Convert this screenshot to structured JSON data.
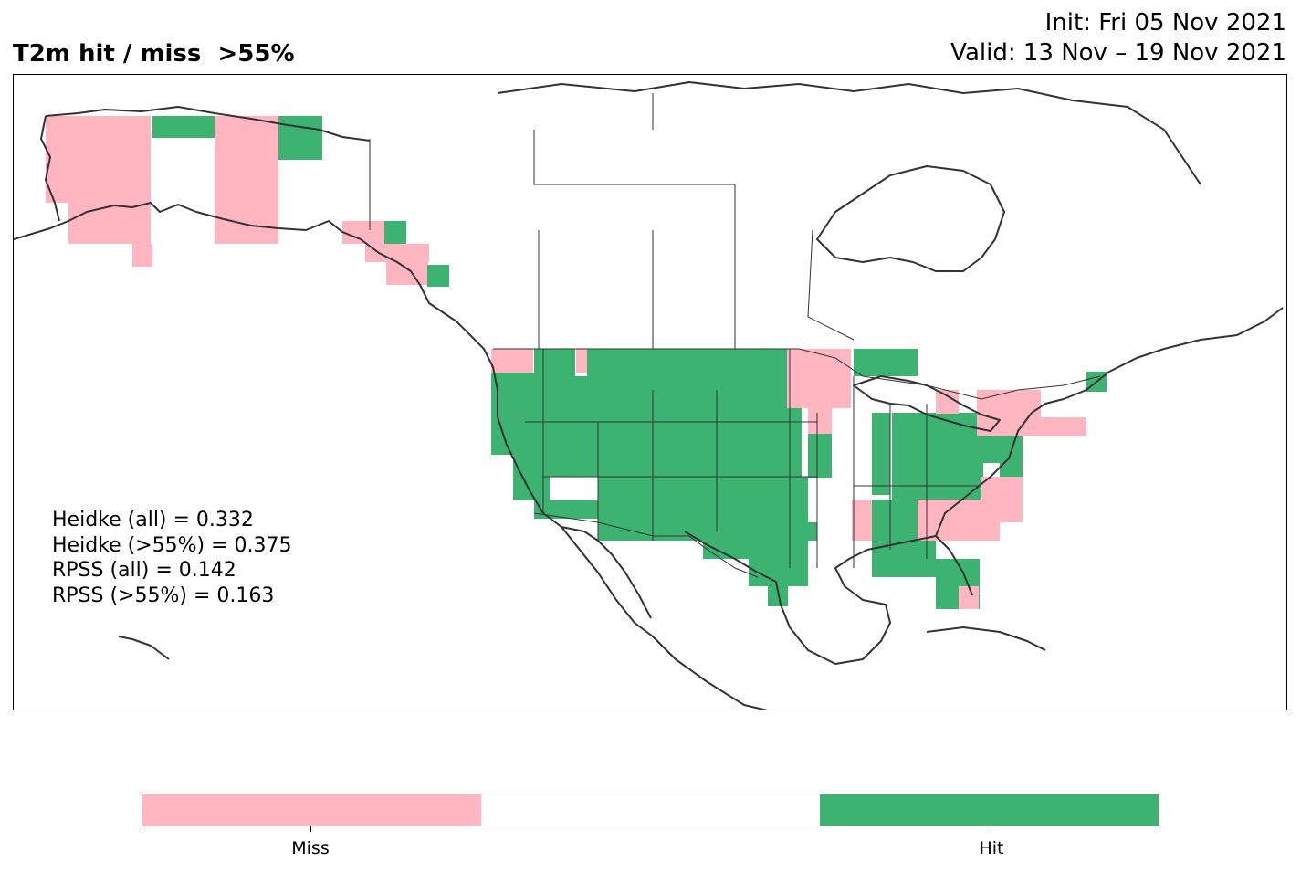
{
  "title": "T2m hit / miss  >55%",
  "init": "Init: Fri 05 Nov 2021",
  "valid": "Valid: 13 Nov – 19 Nov 2021",
  "stats": [
    "Heidke (all) = 0.332",
    "Heidke (>55%) = 0.375",
    "RPSS (all) = 0.142",
    "RPSS (>55%) = 0.163"
  ],
  "colorbar": {
    "labels": [
      "Miss",
      "Hit"
    ],
    "colors": [
      "#ffb6c1",
      "#ffffff",
      "#3cb371"
    ]
  },
  "colors": {
    "miss": "#ffb6c1",
    "hit": "#3cb371",
    "coastline": "#333333",
    "border": "#333333"
  }
}
